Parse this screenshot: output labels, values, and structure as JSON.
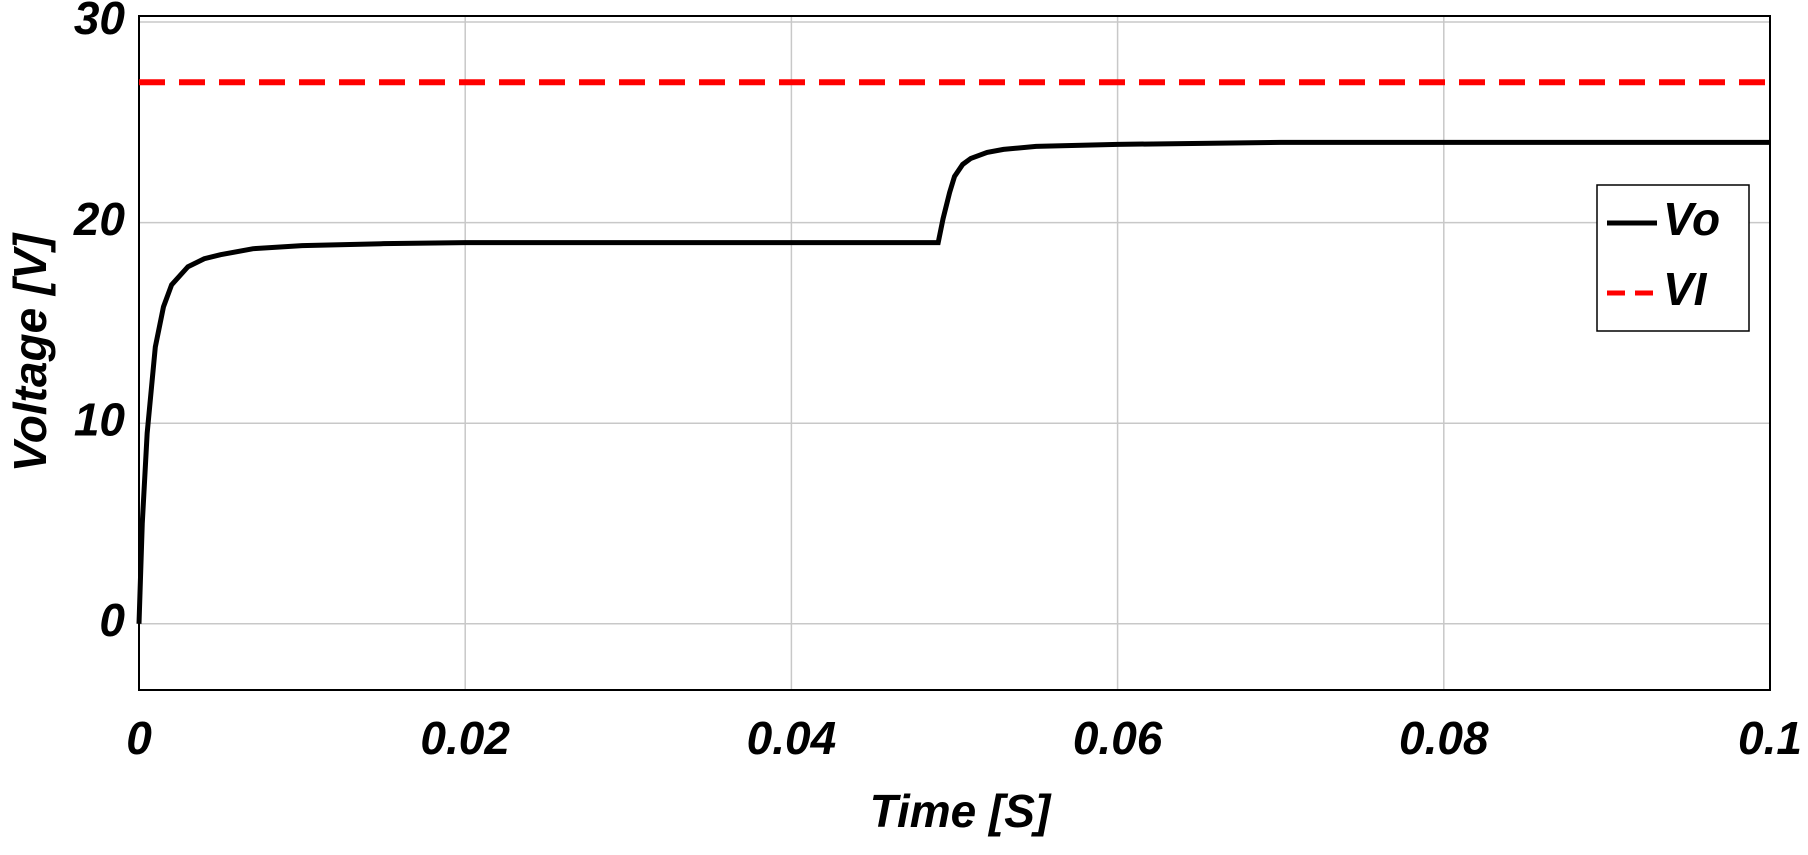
{
  "chart_data": {
    "type": "line",
    "xlabel": "Time [S]",
    "ylabel": "Voltage [V]",
    "xlim": [
      0,
      0.1
    ],
    "xticks": [
      0,
      0.02,
      0.04,
      0.06,
      0.08,
      0.1
    ],
    "ylim": [
      -3.3,
      30.3
    ],
    "yticks": [
      0,
      10,
      20,
      30
    ],
    "grid": true,
    "legend": "right",
    "series": [
      {
        "name": "Vo",
        "color": "#000000",
        "dash": false,
        "x": [
          0,
          0.0002,
          0.0005,
          0.001,
          0.0015,
          0.002,
          0.003,
          0.004,
          0.005,
          0.007,
          0.01,
          0.015,
          0.02,
          0.03,
          0.04,
          0.049,
          0.0493,
          0.0497,
          0.05,
          0.0505,
          0.051,
          0.052,
          0.053,
          0.055,
          0.06,
          0.07,
          0.08,
          0.09,
          0.1
        ],
        "values": [
          0,
          5,
          9.5,
          13.8,
          15.8,
          16.9,
          17.8,
          18.2,
          18.4,
          18.7,
          18.85,
          18.95,
          19,
          19,
          19,
          19,
          20.2,
          21.5,
          22.3,
          22.9,
          23.2,
          23.5,
          23.65,
          23.8,
          23.9,
          24,
          24,
          24,
          24
        ]
      },
      {
        "name": "VI",
        "color": "#ff0000",
        "dash": true,
        "x": [
          0,
          0.1
        ],
        "values": [
          27,
          27
        ]
      }
    ]
  }
}
